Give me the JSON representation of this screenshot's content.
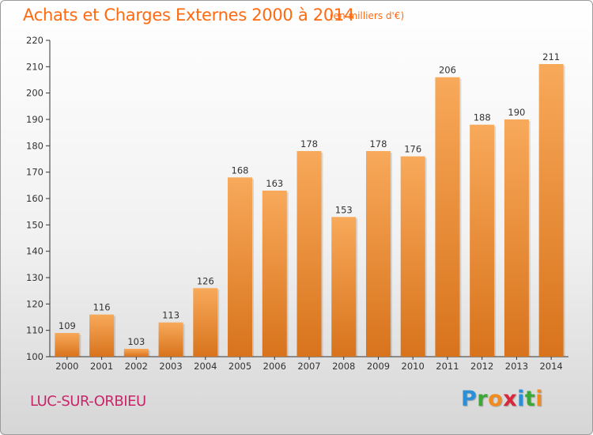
{
  "header": {
    "title": "Achats et Charges Externes 2000 à 2014",
    "subtitle": "(en milliers d'€)"
  },
  "footer": {
    "city": "LUC-SUR-ORBIEU",
    "logo_letters": [
      {
        "char": "P",
        "color": "#2a8fd6"
      },
      {
        "char": "r",
        "color": "#3aa935"
      },
      {
        "char": "o",
        "color": "#f28a1e"
      },
      {
        "char": "x",
        "color": "#d9263a"
      },
      {
        "char": "i",
        "color": "#2a8fd6"
      },
      {
        "char": "t",
        "color": "#3aa935"
      },
      {
        "char": "i",
        "color": "#f28a1e"
      }
    ]
  },
  "colors": {
    "title": "#ff6a10",
    "city": "#c8266a",
    "bar_top": "#f8a95a",
    "bar_bottom": "#d8731c"
  },
  "chart_data": {
    "type": "bar",
    "title": "Achats et Charges Externes 2000 à 2014",
    "subtitle": "(en milliers d'€)",
    "xlabel": "",
    "ylabel": "",
    "categories": [
      "2000",
      "2001",
      "2002",
      "2003",
      "2004",
      "2005",
      "2006",
      "2007",
      "2008",
      "2009",
      "2010",
      "2011",
      "2012",
      "2013",
      "2014"
    ],
    "values": [
      109,
      116,
      103,
      113,
      126,
      168,
      163,
      178,
      153,
      178,
      176,
      206,
      188,
      190,
      211
    ],
    "ylim": [
      100,
      220
    ],
    "yticks": [
      100,
      110,
      120,
      130,
      140,
      150,
      160,
      170,
      180,
      190,
      200,
      210,
      220
    ],
    "grid": false,
    "data_labels": true
  }
}
